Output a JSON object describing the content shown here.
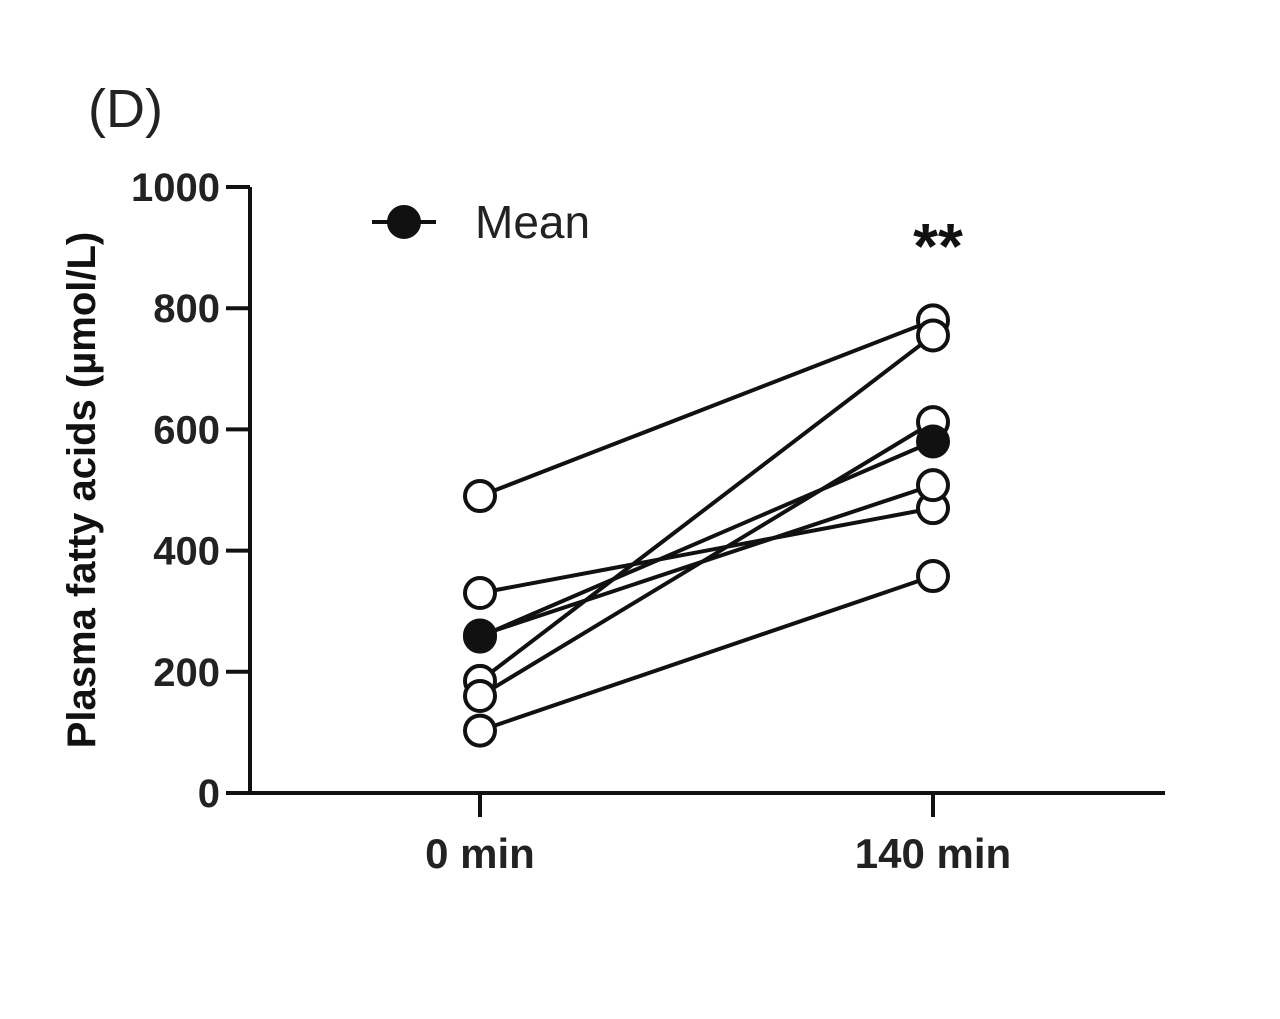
{
  "chart_data": {
    "type": "line",
    "panel_label": "(D)",
    "title": "",
    "xlabel": "",
    "ylabel": "Plasma fatty acids (µmol/L)",
    "categories": [
      "0 min",
      "140 min"
    ],
    "ylim": [
      0,
      1000
    ],
    "yticks": [
      "0",
      "200",
      "400",
      "600",
      "800",
      "1000"
    ],
    "grid": false,
    "legend": {
      "position": "top-left",
      "entries": [
        {
          "label": "Mean",
          "marker": "filled-circle"
        }
      ]
    },
    "annotation": "**",
    "series": [
      {
        "values": [
          490,
          780
        ],
        "marker": "open-circle"
      },
      {
        "values": [
          330,
          470
        ],
        "marker": "open-circle"
      },
      {
        "values": [
          185,
          755
        ],
        "marker": "open-circle"
      },
      {
        "values": [
          160,
          612
        ],
        "marker": "open-circle"
      },
      {
        "values": [
          260,
          508
        ],
        "marker": "open-circle"
      },
      {
        "values": [
          103,
          358
        ],
        "marker": "open-circle"
      },
      {
        "name": "Mean",
        "values": [
          258,
          580
        ],
        "marker": "filled-circle"
      }
    ],
    "colors": {
      "line": "#111111",
      "marker_fill_open": "#ffffff",
      "marker_fill_mean": "#111111"
    }
  }
}
